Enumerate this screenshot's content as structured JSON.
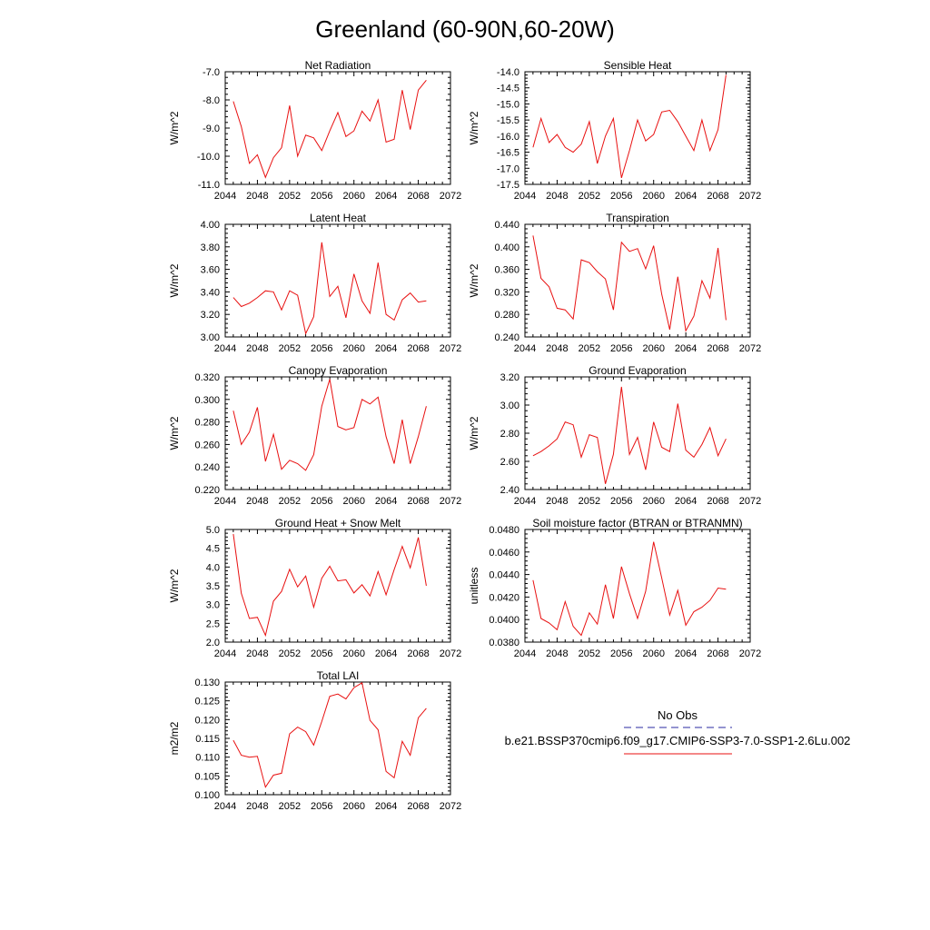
{
  "title": "Greenland (60-90N,60-20W)",
  "legend": {
    "entries": [
      {
        "label": "No Obs",
        "color": "#2a2aa0",
        "dash": true
      },
      {
        "label": "b.e21.BSSP370cmip6.f09_g17.CMIP6-SSP3-7.0-SSP1-2.6Lu.002",
        "color": "#e81010",
        "dash": false
      }
    ]
  },
  "chart_data": [
    {
      "type": "line",
      "title": "Net Radiation",
      "xlabel": "",
      "ylabel": "W/m^2",
      "xlim": [
        2044,
        2072
      ],
      "xticks": [
        2044,
        2048,
        2052,
        2056,
        2060,
        2064,
        2068,
        2072
      ],
      "ylim": [
        -11.0,
        -7.0
      ],
      "yticks": [
        -11.0,
        -10.0,
        -9.0,
        -8.0,
        -7.0
      ],
      "ytick_decimals": 1,
      "x": [
        2045,
        2046,
        2047,
        2048,
        2049,
        2050,
        2051,
        2052,
        2053,
        2054,
        2055,
        2056,
        2057,
        2058,
        2059,
        2060,
        2061,
        2062,
        2063,
        2064,
        2065,
        2066,
        2067,
        2068,
        2069
      ],
      "series": [
        {
          "color": "#e81010",
          "values": [
            -8.05,
            -8.95,
            -10.25,
            -9.95,
            -10.75,
            -10.05,
            -9.7,
            -8.2,
            -10.0,
            -9.25,
            -9.35,
            -9.8,
            -9.1,
            -8.45,
            -9.3,
            -9.1,
            -8.4,
            -8.75,
            -8.0,
            -9.5,
            -9.4,
            -7.65,
            -9.05,
            -7.65,
            -7.3
          ]
        }
      ]
    },
    {
      "type": "line",
      "title": "Sensible Heat",
      "xlabel": "",
      "ylabel": "W/m^2",
      "xlim": [
        2044,
        2072
      ],
      "xticks": [
        2044,
        2048,
        2052,
        2056,
        2060,
        2064,
        2068,
        2072
      ],
      "ylim": [
        -17.5,
        -14.0
      ],
      "yticks": [
        -17.5,
        -17.0,
        -16.5,
        -16.0,
        -15.5,
        -15.0,
        -14.5,
        -14.0
      ],
      "ytick_decimals": 1,
      "x": [
        2045,
        2046,
        2047,
        2048,
        2049,
        2050,
        2051,
        2052,
        2053,
        2054,
        2055,
        2056,
        2057,
        2058,
        2059,
        2060,
        2061,
        2062,
        2063,
        2064,
        2065,
        2066,
        2067,
        2068,
        2069
      ],
      "series": [
        {
          "color": "#e81010",
          "values": [
            -16.35,
            -15.45,
            -16.2,
            -15.95,
            -16.35,
            -16.5,
            -16.25,
            -15.55,
            -16.85,
            -16.0,
            -15.45,
            -17.3,
            -16.45,
            -15.5,
            -16.15,
            -15.95,
            -15.25,
            -15.2,
            -15.55,
            -16.0,
            -16.45,
            -15.5,
            -16.45,
            -15.8,
            -14.1
          ]
        }
      ]
    },
    {
      "type": "line",
      "title": "Latent Heat",
      "xlabel": "",
      "ylabel": "W/m^2",
      "xlim": [
        2044,
        2072
      ],
      "xticks": [
        2044,
        2048,
        2052,
        2056,
        2060,
        2064,
        2068,
        2072
      ],
      "ylim": [
        3.0,
        4.0
      ],
      "yticks": [
        3.0,
        3.2,
        3.4,
        3.6,
        3.8,
        4.0
      ],
      "ytick_decimals": 2,
      "x": [
        2045,
        2046,
        2047,
        2048,
        2049,
        2050,
        2051,
        2052,
        2053,
        2054,
        2055,
        2056,
        2057,
        2058,
        2059,
        2060,
        2061,
        2062,
        2063,
        2064,
        2065,
        2066,
        2067,
        2068,
        2069
      ],
      "series": [
        {
          "color": "#e81010",
          "values": [
            3.35,
            3.27,
            3.3,
            3.35,
            3.41,
            3.4,
            3.24,
            3.41,
            3.37,
            3.03,
            3.18,
            3.84,
            3.36,
            3.45,
            3.17,
            3.56,
            3.32,
            3.21,
            3.66,
            3.2,
            3.15,
            3.33,
            3.39,
            3.31,
            3.32
          ]
        }
      ]
    },
    {
      "type": "line",
      "title": "Transpiration",
      "xlabel": "",
      "ylabel": "W/m^2",
      "xlim": [
        2044,
        2072
      ],
      "xticks": [
        2044,
        2048,
        2052,
        2056,
        2060,
        2064,
        2068,
        2072
      ],
      "ylim": [
        0.24,
        0.44
      ],
      "yticks": [
        0.24,
        0.28,
        0.32,
        0.36,
        0.4,
        0.44
      ],
      "ytick_decimals": 3,
      "x": [
        2045,
        2046,
        2047,
        2048,
        2049,
        2050,
        2051,
        2052,
        2053,
        2054,
        2055,
        2056,
        2057,
        2058,
        2059,
        2060,
        2061,
        2062,
        2063,
        2064,
        2065,
        2066,
        2067,
        2068,
        2069
      ],
      "series": [
        {
          "color": "#e81010",
          "values": [
            0.42,
            0.344,
            0.329,
            0.291,
            0.288,
            0.272,
            0.377,
            0.372,
            0.356,
            0.343,
            0.288,
            0.408,
            0.392,
            0.397,
            0.361,
            0.402,
            0.316,
            0.253,
            0.347,
            0.251,
            0.277,
            0.34,
            0.309,
            0.398,
            0.27
          ]
        }
      ]
    },
    {
      "type": "line",
      "title": "Canopy Evaporation",
      "xlabel": "",
      "ylabel": "W/m^2",
      "xlim": [
        2044,
        2072
      ],
      "xticks": [
        2044,
        2048,
        2052,
        2056,
        2060,
        2064,
        2068,
        2072
      ],
      "ylim": [
        0.22,
        0.32
      ],
      "yticks": [
        0.22,
        0.24,
        0.26,
        0.28,
        0.3,
        0.32
      ],
      "ytick_decimals": 3,
      "x": [
        2045,
        2046,
        2047,
        2048,
        2049,
        2050,
        2051,
        2052,
        2053,
        2054,
        2055,
        2056,
        2057,
        2058,
        2059,
        2060,
        2061,
        2062,
        2063,
        2064,
        2065,
        2066,
        2067,
        2068,
        2069
      ],
      "series": [
        {
          "color": "#e81010",
          "values": [
            0.29,
            0.26,
            0.271,
            0.293,
            0.245,
            0.269,
            0.238,
            0.246,
            0.243,
            0.237,
            0.251,
            0.294,
            0.318,
            0.276,
            0.273,
            0.275,
            0.3,
            0.296,
            0.302,
            0.267,
            0.243,
            0.282,
            0.243,
            0.267,
            0.294
          ]
        }
      ]
    },
    {
      "type": "line",
      "title": "Ground Evaporation",
      "xlabel": "",
      "ylabel": "W/m^2",
      "xlim": [
        2044,
        2072
      ],
      "xticks": [
        2044,
        2048,
        2052,
        2056,
        2060,
        2064,
        2068,
        2072
      ],
      "ylim": [
        2.4,
        3.2
      ],
      "yticks": [
        2.4,
        2.6,
        2.8,
        3.0,
        3.2
      ],
      "ytick_decimals": 2,
      "x": [
        2045,
        2046,
        2047,
        2048,
        2049,
        2050,
        2051,
        2052,
        2053,
        2054,
        2055,
        2056,
        2057,
        2058,
        2059,
        2060,
        2061,
        2062,
        2063,
        2064,
        2065,
        2066,
        2067,
        2068,
        2069
      ],
      "series": [
        {
          "color": "#e81010",
          "values": [
            2.64,
            2.67,
            2.71,
            2.76,
            2.88,
            2.86,
            2.63,
            2.79,
            2.77,
            2.44,
            2.65,
            3.13,
            2.65,
            2.77,
            2.54,
            2.88,
            2.7,
            2.67,
            3.01,
            2.68,
            2.63,
            2.72,
            2.84,
            2.64,
            2.76
          ]
        }
      ]
    },
    {
      "type": "line",
      "title": "Ground Heat + Snow Melt",
      "xlabel": "",
      "ylabel": "W/m^2",
      "xlim": [
        2044,
        2072
      ],
      "xticks": [
        2044,
        2048,
        2052,
        2056,
        2060,
        2064,
        2068,
        2072
      ],
      "ylim": [
        2.0,
        5.0
      ],
      "yticks": [
        2.0,
        2.5,
        3.0,
        3.5,
        4.0,
        4.5,
        5.0
      ],
      "ytick_decimals": 1,
      "x": [
        2045,
        2046,
        2047,
        2048,
        2049,
        2050,
        2051,
        2052,
        2053,
        2054,
        2055,
        2056,
        2057,
        2058,
        2059,
        2060,
        2061,
        2062,
        2063,
        2064,
        2065,
        2066,
        2067,
        2068,
        2069
      ],
      "series": [
        {
          "color": "#e81010",
          "values": [
            4.88,
            3.3,
            2.63,
            2.66,
            2.18,
            3.09,
            3.35,
            3.94,
            3.47,
            3.76,
            2.93,
            3.7,
            4.02,
            3.63,
            3.66,
            3.31,
            3.53,
            3.23,
            3.88,
            3.26,
            3.93,
            4.55,
            3.98,
            4.79,
            3.5
          ]
        }
      ]
    },
    {
      "type": "line",
      "title": "Soil moisture factor (BTRAN or BTRANMN)",
      "xlabel": "",
      "ylabel": "unitless",
      "xlim": [
        2044,
        2072
      ],
      "xticks": [
        2044,
        2048,
        2052,
        2056,
        2060,
        2064,
        2068,
        2072
      ],
      "ylim": [
        0.038,
        0.048
      ],
      "yticks": [
        0.038,
        0.04,
        0.042,
        0.044,
        0.046,
        0.048
      ],
      "ytick_decimals": 4,
      "x": [
        2045,
        2046,
        2047,
        2048,
        2049,
        2050,
        2051,
        2052,
        2053,
        2054,
        2055,
        2056,
        2057,
        2058,
        2059,
        2060,
        2061,
        2062,
        2063,
        2064,
        2065,
        2066,
        2067,
        2068,
        2069
      ],
      "series": [
        {
          "color": "#e81010",
          "values": [
            0.0435,
            0.0401,
            0.0397,
            0.0391,
            0.0416,
            0.0394,
            0.0386,
            0.0406,
            0.0396,
            0.0431,
            0.0401,
            0.0447,
            0.0423,
            0.0401,
            0.0425,
            0.0469,
            0.0437,
            0.0404,
            0.0426,
            0.0395,
            0.0407,
            0.0411,
            0.0417,
            0.0428,
            0.0427
          ]
        }
      ]
    },
    {
      "type": "line",
      "title": "Total LAI",
      "xlabel": "",
      "ylabel": "m2/m2",
      "xlim": [
        2044,
        2072
      ],
      "xticks": [
        2044,
        2048,
        2052,
        2056,
        2060,
        2064,
        2068,
        2072
      ],
      "ylim": [
        0.1,
        0.13
      ],
      "yticks": [
        0.1,
        0.105,
        0.11,
        0.115,
        0.12,
        0.125,
        0.13
      ],
      "ytick_decimals": 3,
      "x": [
        2045,
        2046,
        2047,
        2048,
        2049,
        2050,
        2051,
        2052,
        2053,
        2054,
        2055,
        2056,
        2057,
        2058,
        2059,
        2060,
        2061,
        2062,
        2063,
        2064,
        2065,
        2066,
        2067,
        2068,
        2069
      ],
      "series": [
        {
          "color": "#e81010",
          "values": [
            0.1145,
            0.1105,
            0.11,
            0.1102,
            0.102,
            0.1052,
            0.1057,
            0.1162,
            0.118,
            0.1168,
            0.1132,
            0.1195,
            0.1262,
            0.1268,
            0.1255,
            0.1285,
            0.1298,
            0.1198,
            0.1173,
            0.1062,
            0.1045,
            0.1142,
            0.1105,
            0.1205,
            0.123
          ]
        }
      ]
    }
  ]
}
